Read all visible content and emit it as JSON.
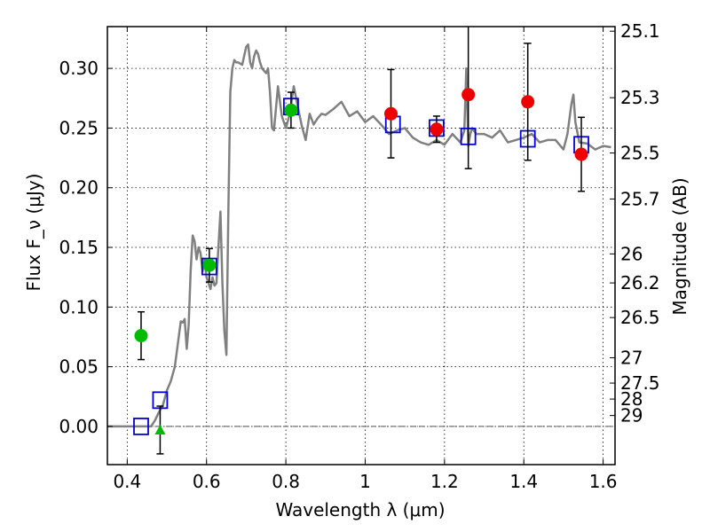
{
  "chart_data": {
    "type": "scatter",
    "xlabel": "Wavelength λ (μm)",
    "ylabel": "Flux F_ν (μJy)",
    "y2label": "Magnitude (AB)",
    "xlim": [
      0.35,
      1.63
    ],
    "ylim": [
      -0.032,
      0.335
    ],
    "grid": true,
    "x_ticks": [
      {
        "value": 0.4,
        "label": "0.4"
      },
      {
        "value": 0.6,
        "label": "0.6"
      },
      {
        "value": 0.8,
        "label": "0.8"
      },
      {
        "value": 1.0,
        "label": "1"
      },
      {
        "value": 1.2,
        "label": "1.2"
      },
      {
        "value": 1.4,
        "label": "1.4"
      },
      {
        "value": 1.6,
        "label": "1.6"
      }
    ],
    "y_ticks": [
      {
        "value": 0.0,
        "label": "0.00"
      },
      {
        "value": 0.05,
        "label": "0.05"
      },
      {
        "value": 0.1,
        "label": "0.10"
      },
      {
        "value": 0.15,
        "label": "0.15"
      },
      {
        "value": 0.2,
        "label": "0.20"
      },
      {
        "value": 0.25,
        "label": "0.25"
      },
      {
        "value": 0.3,
        "label": "0.30"
      }
    ],
    "y2_ticks": [
      {
        "mag": 25.1,
        "label": "25.1"
      },
      {
        "mag": 25.3,
        "label": "25.3"
      },
      {
        "mag": 25.5,
        "label": "25.5"
      },
      {
        "mag": 25.7,
        "label": "25.7"
      },
      {
        "mag": 26.0,
        "label": "26"
      },
      {
        "mag": 26.2,
        "label": "26.2"
      },
      {
        "mag": 26.5,
        "label": "26.5"
      },
      {
        "mag": 27.0,
        "label": "27"
      },
      {
        "mag": 27.5,
        "label": "27.5"
      },
      {
        "mag": 28.0,
        "label": "28"
      },
      {
        "mag": 29.0,
        "label": "29"
      }
    ],
    "ab_zero_point_ujy": 3631000000,
    "zero_line": {
      "value": 0.0,
      "color": "#555555"
    },
    "template": {
      "color": "#808080",
      "x": [
        0.35,
        0.46,
        0.47,
        0.48,
        0.49,
        0.5,
        0.51,
        0.52,
        0.53,
        0.535,
        0.54,
        0.545,
        0.55,
        0.555,
        0.56,
        0.565,
        0.57,
        0.575,
        0.58,
        0.585,
        0.59,
        0.595,
        0.6,
        0.605,
        0.61,
        0.615,
        0.62,
        0.625,
        0.63,
        0.635,
        0.64,
        0.645,
        0.65,
        0.655,
        0.66,
        0.665,
        0.67,
        0.675,
        0.68,
        0.69,
        0.7,
        0.705,
        0.71,
        0.715,
        0.72,
        0.725,
        0.73,
        0.735,
        0.74,
        0.745,
        0.75,
        0.755,
        0.76,
        0.765,
        0.77,
        0.78,
        0.79,
        0.8,
        0.81,
        0.82,
        0.83,
        0.84,
        0.85,
        0.86,
        0.87,
        0.88,
        0.89,
        0.9,
        0.92,
        0.94,
        0.96,
        0.98,
        1.0,
        1.02,
        1.04,
        1.06,
        1.08,
        1.1,
        1.12,
        1.14,
        1.16,
        1.18,
        1.2,
        1.22,
        1.24,
        1.25,
        1.255,
        1.26,
        1.265,
        1.27,
        1.28,
        1.3,
        1.32,
        1.34,
        1.36,
        1.38,
        1.4,
        1.42,
        1.44,
        1.46,
        1.48,
        1.5,
        1.51,
        1.52,
        1.525,
        1.53,
        1.54,
        1.56,
        1.58,
        1.6,
        1.62
      ],
      "y": [
        0.0,
        0.0,
        0.005,
        0.012,
        0.018,
        0.03,
        0.038,
        0.05,
        0.075,
        0.088,
        0.087,
        0.09,
        0.065,
        0.085,
        0.13,
        0.16,
        0.155,
        0.14,
        0.15,
        0.145,
        0.13,
        0.14,
        0.125,
        0.12,
        0.115,
        0.125,
        0.118,
        0.12,
        0.15,
        0.18,
        0.12,
        0.08,
        0.06,
        0.18,
        0.28,
        0.3,
        0.307,
        0.305,
        0.305,
        0.303,
        0.318,
        0.32,
        0.305,
        0.3,
        0.31,
        0.315,
        0.312,
        0.305,
        0.3,
        0.298,
        0.296,
        0.3,
        0.28,
        0.25,
        0.248,
        0.285,
        0.26,
        0.25,
        0.262,
        0.285,
        0.268,
        0.252,
        0.24,
        0.262,
        0.253,
        0.258,
        0.262,
        0.261,
        0.266,
        0.272,
        0.26,
        0.264,
        0.255,
        0.26,
        0.253,
        0.245,
        0.248,
        0.25,
        0.242,
        0.238,
        0.236,
        0.24,
        0.236,
        0.245,
        0.238,
        0.248,
        0.3,
        0.235,
        0.245,
        0.25,
        0.245,
        0.245,
        0.242,
        0.248,
        0.238,
        0.24,
        0.242,
        0.245,
        0.238,
        0.24,
        0.24,
        0.232,
        0.245,
        0.27,
        0.278,
        0.255,
        0.238,
        0.237,
        0.232,
        0.235,
        0.234
      ]
    },
    "series": [
      {
        "marker": "square-open",
        "color": "#0000dd",
        "x": [
          0.435,
          0.483,
          0.607,
          0.813,
          1.07,
          1.18,
          1.26,
          1.41,
          1.545
        ],
        "y": [
          0.0,
          0.022,
          0.134,
          0.268,
          0.253,
          0.25,
          0.243,
          0.241,
          0.236
        ]
      },
      {
        "marker": "circle-filled",
        "color": "#00bb00",
        "x": [
          0.435,
          0.607,
          0.813
        ],
        "y": [
          0.076,
          0.135,
          0.265
        ],
        "err": [
          0.02,
          0.014,
          0.015
        ]
      },
      {
        "marker": "triangle-filled",
        "color": "#00bb00",
        "x": [
          0.483
        ],
        "y": [
          -0.003
        ],
        "err": [
          0.02
        ]
      },
      {
        "marker": "circle-filled",
        "color": "#ee0000",
        "x": [
          1.065,
          1.18,
          1.26,
          1.41,
          1.545
        ],
        "y": [
          0.262,
          0.249,
          0.278,
          0.272,
          0.228
        ],
        "err": [
          0.037,
          0.011,
          0.062,
          0.049,
          0.031
        ]
      }
    ]
  }
}
